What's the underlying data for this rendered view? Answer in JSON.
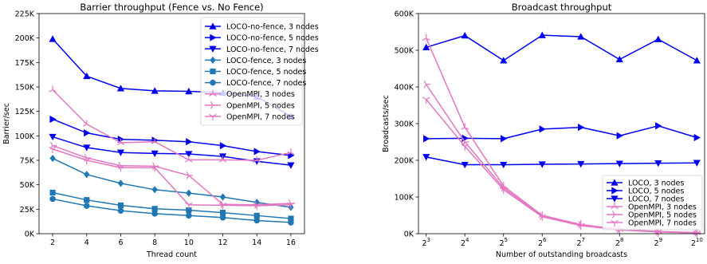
{
  "chart_data": [
    {
      "type": "line",
      "title": "Barrier throughput (Fence vs. No Fence)",
      "xlabel": "Thread count",
      "ylabel": "Barrier/sec",
      "x": [
        2,
        4,
        6,
        8,
        10,
        12,
        14,
        16
      ],
      "x_tick_labels": [
        "2",
        "4",
        "6",
        "8",
        "10",
        "12",
        "14",
        "16"
      ],
      "ylim": [
        0,
        225000
      ],
      "y_ticks": [
        0,
        25000,
        50000,
        75000,
        100000,
        125000,
        150000,
        175000,
        200000,
        225000
      ],
      "y_tick_labels": [
        "0K",
        "25K",
        "50K",
        "75K",
        "100K",
        "125K",
        "150K",
        "175K",
        "200K",
        "225K"
      ],
      "legend_position": "top-right",
      "grid": false,
      "series": [
        {
          "name": "LOCO-no-fence, 3 nodes",
          "color": "#0000ee",
          "marker": "triangle-up",
          "values": [
            199000,
            161000,
            148500,
            146000,
            145500,
            144000,
            140000,
            120000
          ]
        },
        {
          "name": "LOCO-no-fence, 5 nodes",
          "color": "#0000ee",
          "marker": "triangle-right",
          "values": [
            117000,
            103000,
            96500,
            95500,
            94000,
            90000,
            84000,
            80000
          ]
        },
        {
          "name": "LOCO-no-fence, 7 nodes",
          "color": "#0000ee",
          "marker": "triangle-down",
          "values": [
            99000,
            88000,
            83000,
            82000,
            81500,
            79000,
            74000,
            70000
          ]
        },
        {
          "name": "LOCO-fence, 3 nodes",
          "color": "#1f77b4",
          "marker": "diamond",
          "values": [
            77000,
            60500,
            51500,
            45000,
            41500,
            37500,
            32000,
            27000
          ]
        },
        {
          "name": "LOCO-fence, 5 nodes",
          "color": "#1f77b4",
          "marker": "square",
          "values": [
            42000,
            34500,
            29000,
            25500,
            24000,
            21500,
            18500,
            15500
          ]
        },
        {
          "name": "LOCO-fence, 7 nodes",
          "color": "#1f77b4",
          "marker": "circle",
          "values": [
            35500,
            28500,
            23500,
            20500,
            18500,
            16500,
            13500,
            11500
          ]
        },
        {
          "name": "OpenMPI, 3 nodes",
          "color": "#e377c2",
          "marker": "tri-up",
          "values": [
            147000,
            112000,
            93000,
            94000,
            75500,
            75500,
            75000,
            83000
          ]
        },
        {
          "name": "OpenMPI, 5 nodes",
          "color": "#e377c2",
          "marker": "tri-right",
          "values": [
            90000,
            77500,
            69500,
            69000,
            59500,
            30000,
            29500,
            31000
          ]
        },
        {
          "name": "OpenMPI, 7 nodes",
          "color": "#e377c2",
          "marker": "tri-down",
          "values": [
            86500,
            75000,
            67500,
            67500,
            29500,
            29000,
            28500,
            29500
          ]
        }
      ]
    },
    {
      "type": "line",
      "title": "Broadcast throughput",
      "xlabel": "Number of outstanding broadcasts",
      "ylabel": "Broadcasts/sec",
      "x": [
        8,
        16,
        32,
        64,
        128,
        256,
        512,
        1024
      ],
      "x_scale": "log2",
      "x_tick_base": [
        "2",
        "2",
        "2",
        "2",
        "2",
        "2",
        "2",
        "2"
      ],
      "x_tick_exp": [
        "3",
        "4",
        "5",
        "6",
        "7",
        "8",
        "9",
        "10"
      ],
      "ylim": [
        0,
        600000
      ],
      "y_ticks": [
        0,
        100000,
        200000,
        300000,
        400000,
        500000,
        600000
      ],
      "y_tick_labels": [
        "0K",
        "100K",
        "200K",
        "300K",
        "400K",
        "500K",
        "600K"
      ],
      "legend_position": "lower-right",
      "grid": false,
      "series": [
        {
          "name": "LOCO, 3 nodes",
          "color": "#0000ee",
          "marker": "triangle-up",
          "values": [
            508000,
            540000,
            472000,
            541000,
            537000,
            475000,
            530000,
            472000
          ]
        },
        {
          "name": "LOCO, 5 nodes",
          "color": "#0000ee",
          "marker": "triangle-right",
          "values": [
            259000,
            260000,
            259000,
            285000,
            290000,
            267000,
            294000,
            262000
          ]
        },
        {
          "name": "LOCO, 7 nodes",
          "color": "#0000ee",
          "marker": "triangle-down",
          "values": [
            209000,
            188000,
            188000,
            189000,
            190000,
            191000,
            192000,
            193000
          ]
        },
        {
          "name": "OpenMPI, 3 nodes",
          "color": "#e377c2",
          "marker": "tri-up",
          "values": [
            533000,
            290000,
            130000,
            50000,
            25000,
            12000,
            6000,
            3000
          ]
        },
        {
          "name": "OpenMPI, 5 nodes",
          "color": "#e377c2",
          "marker": "tri-right",
          "values": [
            407000,
            250000,
            125000,
            48000,
            24000,
            11000,
            5000,
            2500
          ]
        },
        {
          "name": "OpenMPI, 7 nodes",
          "color": "#e377c2",
          "marker": "tri-down",
          "values": [
            366000,
            238000,
            120000,
            46000,
            22000,
            10000,
            5000,
            2000
          ]
        }
      ]
    }
  ]
}
